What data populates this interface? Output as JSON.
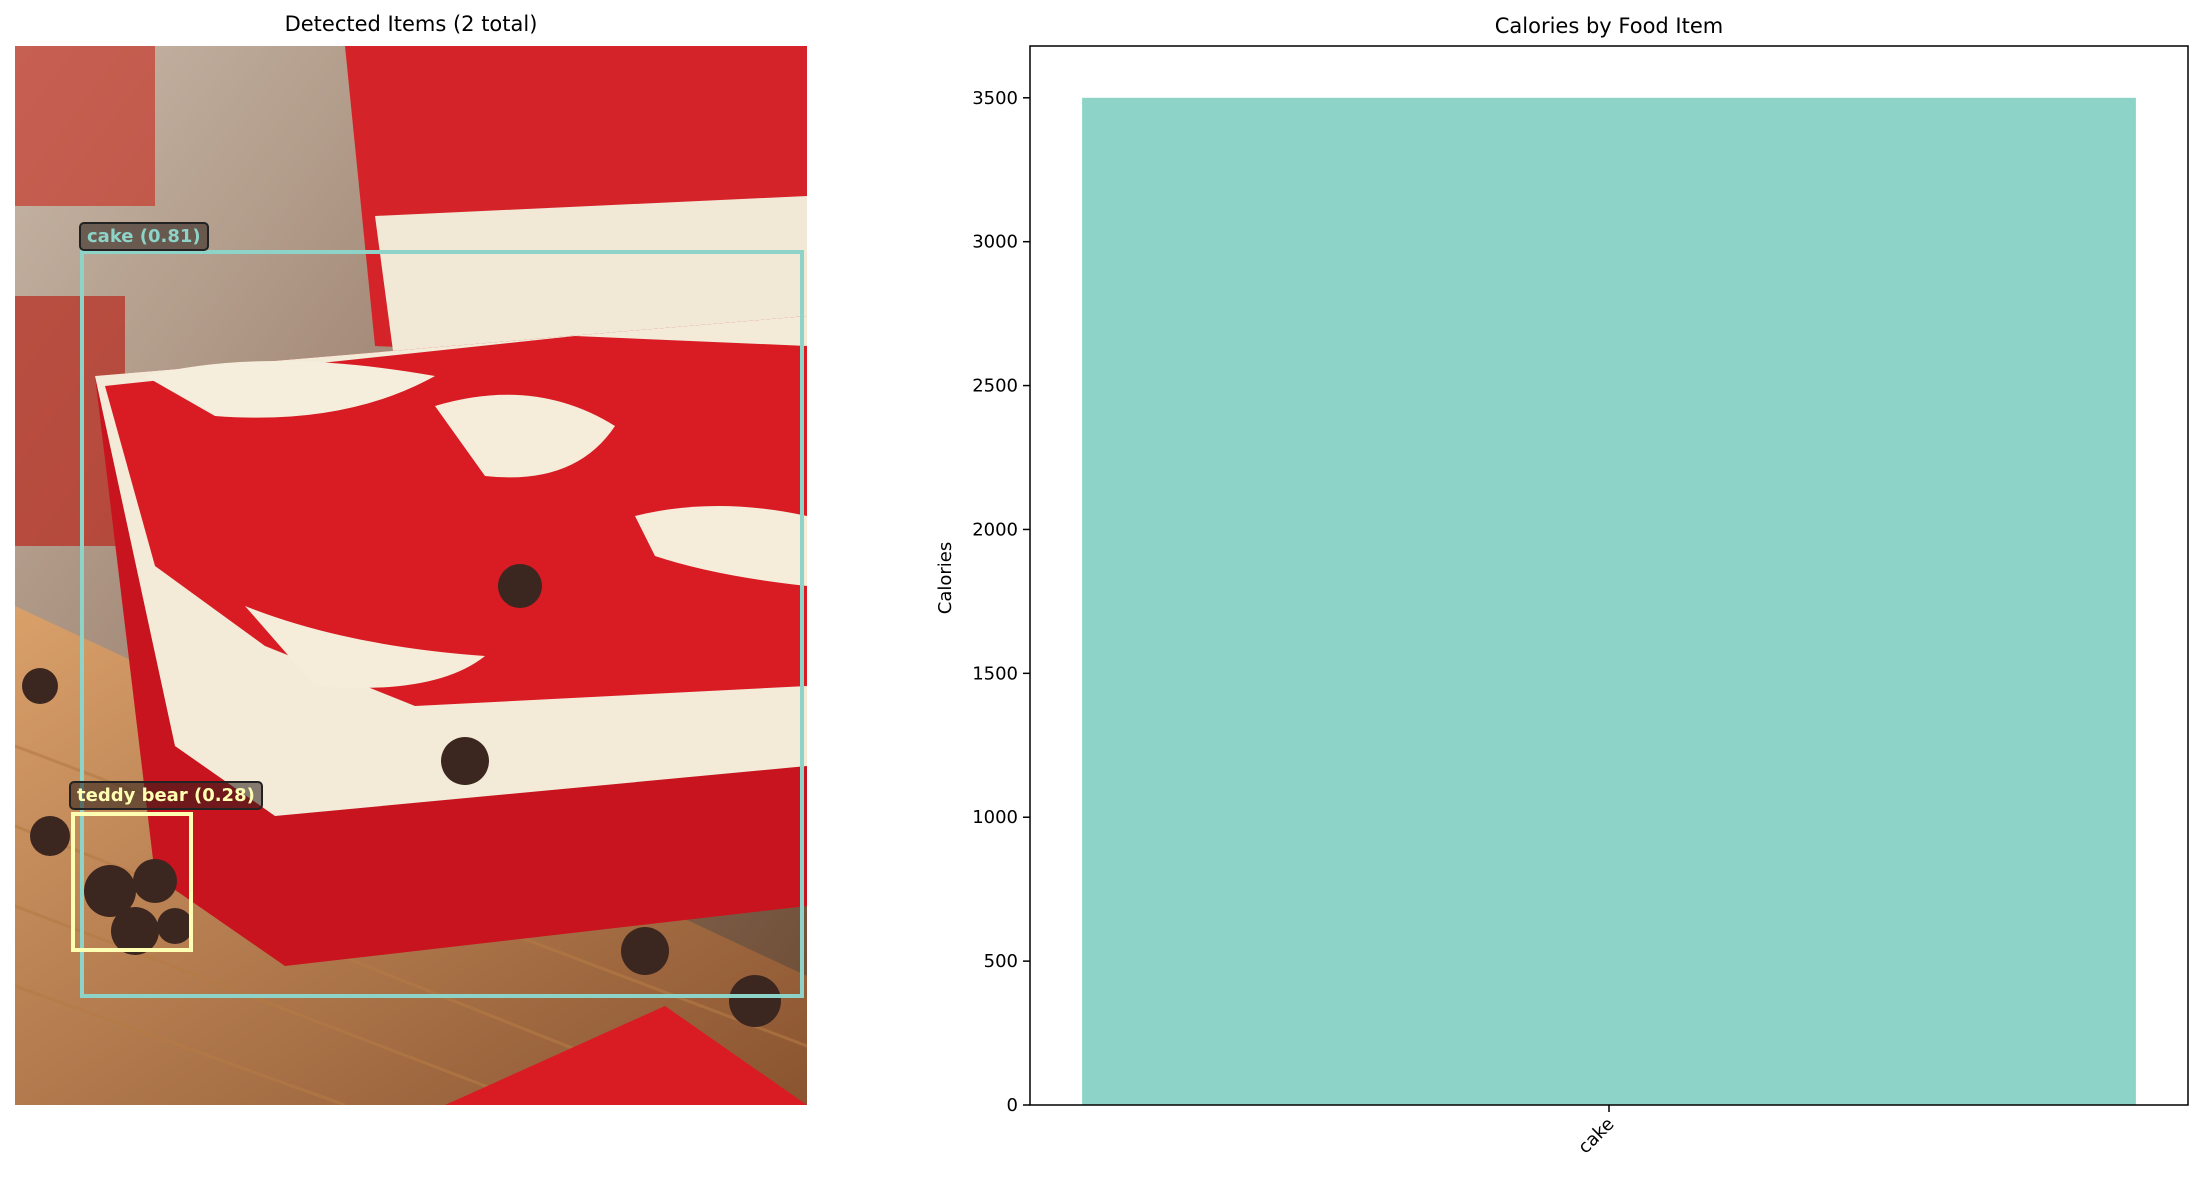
{
  "image_panel": {
    "title": "Detected Items (2 total)",
    "detections": [
      {
        "label": "cake (0.81)",
        "color": "#8dd3c7"
      },
      {
        "label": "teddy bear (0.28)",
        "color": "#ffffb3"
      }
    ]
  },
  "chart_data": {
    "type": "bar",
    "title": "Calories by Food Item",
    "xlabel": "",
    "ylabel": "Calories",
    "categories": [
      "cake"
    ],
    "values": [
      3500
    ],
    "ylim": [
      0,
      3680
    ],
    "yticks": [
      0,
      500,
      1000,
      1500,
      2000,
      2500,
      3000,
      3500
    ],
    "bar_color": "#8dd3c7",
    "grid": false,
    "xtick_rotation": 45
  }
}
